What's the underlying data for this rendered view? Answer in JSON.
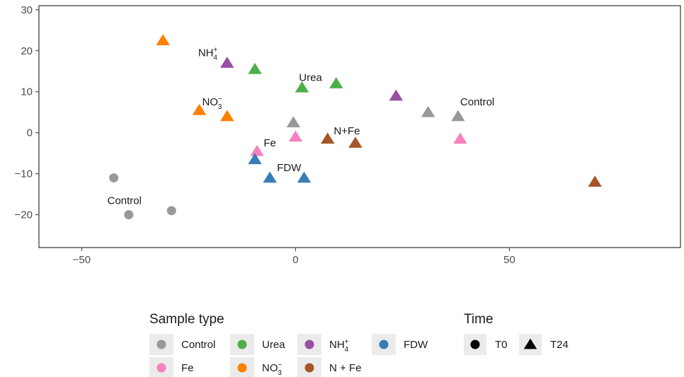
{
  "chart_data": {
    "type": "scatter",
    "title": "",
    "xlabel": "",
    "ylabel": "",
    "xlim": [
      -60,
      90
    ],
    "ylim": [
      -28,
      31
    ],
    "x_ticks": [
      -50,
      0,
      50
    ],
    "y_ticks": [
      -20,
      -10,
      0,
      10,
      20,
      30
    ],
    "x_tick_labels": [
      "−50",
      "0",
      "50"
    ],
    "y_tick_labels": [
      "−20",
      "−10",
      "0",
      "10",
      "20",
      "30"
    ],
    "grid": false,
    "legend_position": "bottom",
    "colors": {
      "Control": "#999999",
      "Fe": "#f781bf",
      "Urea": "#4daf4a",
      "NO3": "#ff7f00",
      "NH4": "#984ea3",
      "NpFe": "#a65628",
      "FDW": "#377eb8"
    },
    "points": [
      {
        "x": -42.5,
        "y": -11,
        "group": "Control",
        "time": "T0"
      },
      {
        "x": -39,
        "y": -20,
        "group": "Control",
        "time": "T0"
      },
      {
        "x": -29,
        "y": -19,
        "group": "Control",
        "time": "T0"
      },
      {
        "x": -31,
        "y": 22.5,
        "group": "NO3",
        "time": "T24"
      },
      {
        "x": -16,
        "y": 17,
        "group": "NH4",
        "time": "T24"
      },
      {
        "x": -9.5,
        "y": 15.5,
        "group": "Urea",
        "time": "T24"
      },
      {
        "x": 1.5,
        "y": 11,
        "group": "Urea",
        "time": "T24"
      },
      {
        "x": 9.5,
        "y": 12,
        "group": "Urea",
        "time": "T24"
      },
      {
        "x": 23.5,
        "y": 9,
        "group": "NH4",
        "time": "T24"
      },
      {
        "x": -22.5,
        "y": 5.5,
        "group": "NO3",
        "time": "T24"
      },
      {
        "x": -16,
        "y": 4,
        "group": "NO3",
        "time": "T24"
      },
      {
        "x": -0.5,
        "y": 2.5,
        "group": "Control",
        "time": "T24"
      },
      {
        "x": 31,
        "y": 5,
        "group": "Control",
        "time": "T24"
      },
      {
        "x": 38,
        "y": 4,
        "group": "Control",
        "time": "T24"
      },
      {
        "x": 0,
        "y": -1,
        "group": "Fe",
        "time": "T24"
      },
      {
        "x": 7.5,
        "y": -1.5,
        "group": "NpFe",
        "time": "T24"
      },
      {
        "x": 14,
        "y": -2.5,
        "group": "NpFe",
        "time": "T24"
      },
      {
        "x": 38.5,
        "y": -1.5,
        "group": "Fe",
        "time": "T24"
      },
      {
        "x": -9,
        "y": -4.5,
        "group": "Fe",
        "time": "T24"
      },
      {
        "x": -9.5,
        "y": -6.5,
        "group": "FDW",
        "time": "T24"
      },
      {
        "x": -6,
        "y": -11,
        "group": "FDW",
        "time": "T24"
      },
      {
        "x": 2,
        "y": -11,
        "group": "FDW",
        "time": "T24"
      },
      {
        "x": 70,
        "y": -12,
        "group": "NpFe",
        "time": "T24"
      }
    ],
    "annotations": [
      {
        "text": "Control",
        "x": -40,
        "y": -16.5
      },
      {
        "text": "NH",
        "sub": "4",
        "sup": "+",
        "x": -20.5,
        "y": 19.5
      },
      {
        "text": "NO",
        "sub": "3",
        "sup": "−",
        "x": -19.5,
        "y": 7.5
      },
      {
        "text": "Urea",
        "x": 3.5,
        "y": 13.5
      },
      {
        "text": "Control",
        "x": 42.5,
        "y": 7.5
      },
      {
        "text": "N+Fe",
        "x": 12,
        "y": 0.5
      },
      {
        "text": "Fe",
        "x": -6,
        "y": -2.5
      },
      {
        "text": "FDW",
        "x": -1.5,
        "y": -8.5
      }
    ],
    "legend": {
      "sample_type": {
        "title": "Sample type",
        "items": [
          {
            "key": "Control",
            "label": "Control"
          },
          {
            "key": "Urea",
            "label": "Urea"
          },
          {
            "key": "NH4",
            "label": "NH",
            "sub": "4",
            "sup": "+"
          },
          {
            "key": "FDW",
            "label": "FDW"
          },
          {
            "key": "Fe",
            "label": "Fe"
          },
          {
            "key": "NO3",
            "label": "NO",
            "sub": "3",
            "sup": "−"
          },
          {
            "key": "NpFe",
            "label": "N + Fe"
          }
        ]
      },
      "time": {
        "title": "Time",
        "items": [
          {
            "label": "T0",
            "shape": "circle"
          },
          {
            "label": "T24",
            "shape": "triangle"
          }
        ]
      }
    }
  }
}
